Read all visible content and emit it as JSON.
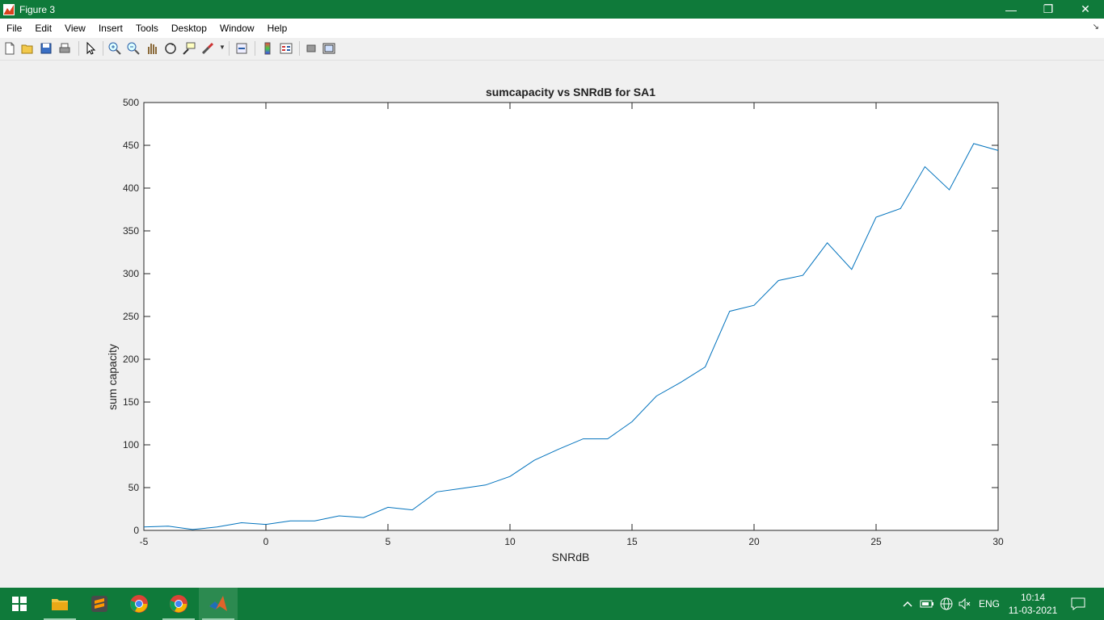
{
  "window": {
    "title": "Figure 3",
    "controls": {
      "minimize": "—",
      "restore": "❐",
      "close": "✕"
    }
  },
  "menubar": {
    "items": [
      "File",
      "Edit",
      "View",
      "Insert",
      "Tools",
      "Desktop",
      "Window",
      "Help"
    ]
  },
  "toolbar": {
    "icons": [
      "new-figure-icon",
      "open-file-icon",
      "save-icon",
      "print-icon",
      "pointer-icon",
      "zoom-in-icon",
      "zoom-out-icon",
      "pan-icon",
      "rotate-3d-icon",
      "data-cursor-icon",
      "brush-icon",
      "link-plot-icon",
      "colorbar-icon",
      "legend-icon",
      "hide-plot-tools-icon",
      "show-plot-tools-icon"
    ]
  },
  "chart_data": {
    "type": "line",
    "title": "sumcapacity vs SNRdB for SA1",
    "xlabel": "SNRdB",
    "ylabel": "sum capacity",
    "xlim": [
      -5,
      30
    ],
    "ylim": [
      0,
      500
    ],
    "xticks": [
      "-5",
      "0",
      "5",
      "10",
      "15",
      "20",
      "25",
      "30"
    ],
    "yticks": [
      "0",
      "50",
      "100",
      "150",
      "200",
      "250",
      "300",
      "350",
      "400",
      "450",
      "500"
    ],
    "grid": false,
    "series_color": "#0072bd",
    "x": [
      -5,
      -4,
      -3,
      -2,
      -1,
      0,
      1,
      2,
      3,
      4,
      5,
      6,
      7,
      8,
      9,
      10,
      11,
      12,
      13,
      14,
      15,
      16,
      17,
      18,
      19,
      20,
      21,
      22,
      23,
      24,
      25,
      26,
      27,
      28,
      29,
      30
    ],
    "y": [
      4,
      5,
      1,
      4,
      9,
      7,
      11,
      11,
      17,
      15,
      27,
      24,
      45,
      49,
      53,
      63,
      82,
      95,
      107,
      107,
      127,
      157,
      173,
      191,
      256,
      263,
      292,
      298,
      336,
      305,
      366,
      376,
      425,
      398,
      452,
      444
    ]
  },
  "taskbar": {
    "apps": [
      "windows-start-icon",
      "file-explorer-icon",
      "sublime-text-icon",
      "chrome-icon",
      "chrome-icon-2",
      "matlab-icon"
    ],
    "tray": {
      "language": "ENG",
      "time": "10:14",
      "date": "11-03-2021"
    }
  }
}
